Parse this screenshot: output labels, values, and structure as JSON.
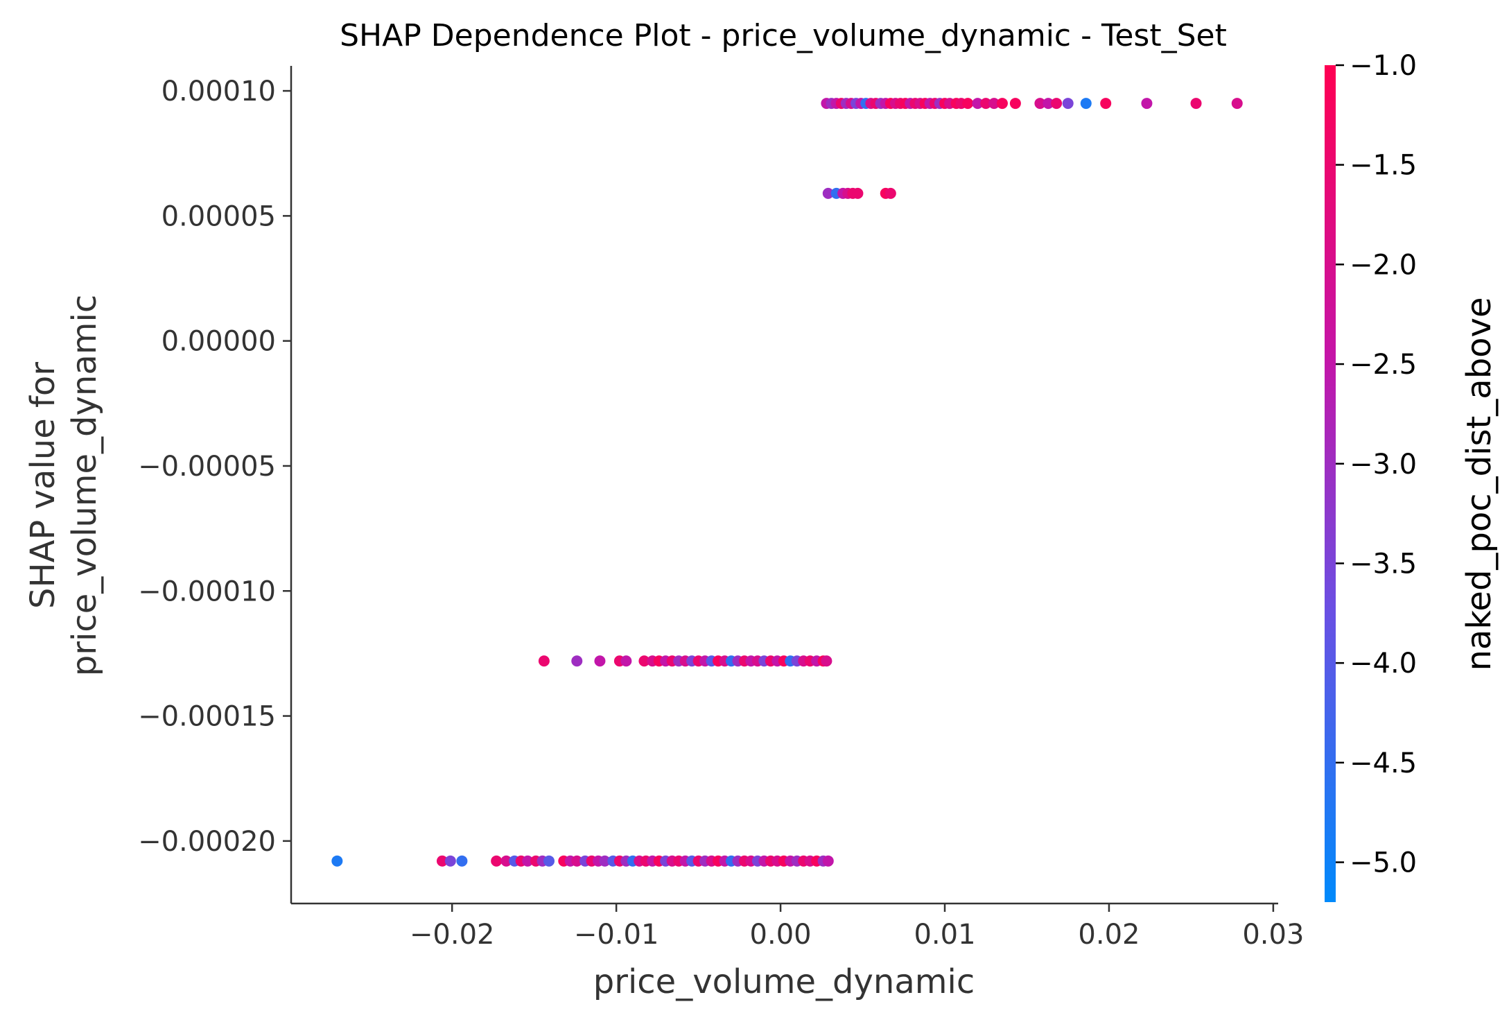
{
  "chart_data": {
    "type": "scatter",
    "title": "SHAP Dependence Plot - price_volume_dynamic - Test_Set",
    "xlabel": "price_volume_dynamic",
    "ylabel_lines": [
      "SHAP value for",
      "price_volume_dynamic"
    ],
    "xlim": [
      -0.0298,
      0.0303
    ],
    "ylim": [
      -0.000225,
      0.00011
    ],
    "x_ticks": [
      -0.02,
      -0.01,
      0.0,
      0.01,
      0.02,
      0.03
    ],
    "x_tick_labels": [
      "−0.02",
      "−0.01",
      "0.00",
      "0.01",
      "0.02",
      "0.03"
    ],
    "y_ticks": [
      0.0001,
      5e-05,
      0.0,
      -5e-05,
      -0.0001,
      -0.00015,
      -0.0002
    ],
    "y_tick_labels": [
      "0.00010",
      "0.00005",
      "0.00000",
      "−0.00005",
      "−0.00010",
      "−0.00015",
      "−0.00020"
    ],
    "colorbar": {
      "label": "naked_poc_dist_above",
      "range": [
        -5.2,
        -1.0
      ],
      "ticks": [
        -1.0,
        -1.5,
        -2.0,
        -2.5,
        -3.0,
        -3.5,
        -4.0,
        -4.5,
        -5.0
      ],
      "tick_labels": [
        "−1.0",
        "−1.5",
        "−2.0",
        "−2.5",
        "−3.0",
        "−3.5",
        "−4.0",
        "−4.5",
        "−5.0"
      ],
      "colors": [
        "#008afb",
        "#ff0052"
      ]
    },
    "series": [
      {
        "y": 9.5e-05,
        "points": [
          [
            0.0028,
            -2.5
          ],
          [
            0.0031,
            -3.0
          ],
          [
            0.0034,
            -2.5
          ],
          [
            0.0037,
            -1.5
          ],
          [
            0.004,
            -3.0
          ],
          [
            0.0043,
            -2.0
          ],
          [
            0.0046,
            -3.5
          ],
          [
            0.0049,
            -2.5
          ],
          [
            0.0052,
            -4.5
          ],
          [
            0.0055,
            -2.0
          ],
          [
            0.0058,
            -1.5
          ],
          [
            0.0061,
            -3.0
          ],
          [
            0.0064,
            -2.5
          ],
          [
            0.0067,
            -1.2
          ],
          [
            0.007,
            -2.0
          ],
          [
            0.0073,
            -1.5
          ],
          [
            0.0076,
            -1.2
          ],
          [
            0.0079,
            -2.5
          ],
          [
            0.0082,
            -1.5
          ],
          [
            0.0085,
            -2.0
          ],
          [
            0.0088,
            -1.2
          ],
          [
            0.0091,
            -2.5
          ],
          [
            0.0094,
            -1.5
          ],
          [
            0.0097,
            -3.0
          ],
          [
            0.01,
            -1.2
          ],
          [
            0.0103,
            -2.0
          ],
          [
            0.0107,
            -1.2
          ],
          [
            0.011,
            -1.5
          ],
          [
            0.0114,
            -1.2
          ],
          [
            0.012,
            -2.5
          ],
          [
            0.0125,
            -1.5
          ],
          [
            0.013,
            -2.0
          ],
          [
            0.0135,
            -1.2
          ],
          [
            0.0143,
            -1.2
          ],
          [
            0.0158,
            -2.0
          ],
          [
            0.0163,
            -2.5
          ],
          [
            0.0168,
            -1.5
          ],
          [
            0.0175,
            -3.5
          ],
          [
            0.0186,
            -4.8
          ],
          [
            0.0198,
            -1.2
          ],
          [
            0.0223,
            -2.5
          ],
          [
            0.0253,
            -1.5
          ],
          [
            0.0278,
            -2.0
          ]
        ]
      },
      {
        "y": 5.9e-05,
        "points": [
          [
            0.0029,
            -3.0
          ],
          [
            0.0034,
            -4.5
          ],
          [
            0.0038,
            -2.5
          ],
          [
            0.0041,
            -2.0
          ],
          [
            0.0044,
            -1.5
          ],
          [
            0.0047,
            -1.5
          ],
          [
            0.0064,
            -1.2
          ],
          [
            0.0067,
            -1.5
          ]
        ]
      },
      {
        "y": -0.000128,
        "points": [
          [
            -0.0144,
            -1.5
          ],
          [
            -0.0124,
            -3.0
          ],
          [
            -0.011,
            -2.5
          ],
          [
            -0.0098,
            -1.5
          ],
          [
            -0.0094,
            -2.5
          ],
          [
            -0.0083,
            -1.5
          ],
          [
            -0.0078,
            -2.0
          ],
          [
            -0.0074,
            -1.2
          ],
          [
            -0.007,
            -2.5
          ],
          [
            -0.0066,
            -1.5
          ],
          [
            -0.0062,
            -3.0
          ],
          [
            -0.0058,
            -2.0
          ],
          [
            -0.0054,
            -3.5
          ],
          [
            -0.005,
            -1.5
          ],
          [
            -0.0046,
            -2.5
          ],
          [
            -0.0042,
            -4.0
          ],
          [
            -0.0038,
            -1.2
          ],
          [
            -0.0034,
            -2.0
          ],
          [
            -0.003,
            -4.5
          ],
          [
            -0.0026,
            -3.0
          ],
          [
            -0.0022,
            -1.5
          ],
          [
            -0.0018,
            -2.5
          ],
          [
            -0.0014,
            -2.0
          ],
          [
            -0.001,
            -3.5
          ],
          [
            -0.0006,
            -1.5
          ],
          [
            -0.0002,
            -2.5
          ],
          [
            0.0002,
            -1.2
          ],
          [
            0.0006,
            -4.5
          ],
          [
            0.001,
            -3.5
          ],
          [
            0.0014,
            -2.0
          ],
          [
            0.0018,
            -1.5
          ],
          [
            0.0022,
            -2.5
          ],
          [
            0.0026,
            -1.2
          ],
          [
            0.0028,
            -2.0
          ]
        ]
      },
      {
        "y": -0.000208,
        "points": [
          [
            -0.027,
            -4.8
          ],
          [
            -0.0206,
            -1.5
          ],
          [
            -0.0201,
            -3.5
          ],
          [
            -0.0194,
            -4.5
          ],
          [
            -0.0173,
            -1.5
          ],
          [
            -0.0167,
            -2.0
          ],
          [
            -0.0162,
            -4.0
          ],
          [
            -0.0158,
            -1.5
          ],
          [
            -0.0154,
            -2.5
          ],
          [
            -0.0149,
            -1.5
          ],
          [
            -0.0145,
            -3.0
          ],
          [
            -0.0141,
            -4.0
          ],
          [
            -0.0132,
            -1.2
          ],
          [
            -0.0128,
            -2.5
          ],
          [
            -0.0124,
            -2.0
          ],
          [
            -0.0119,
            -3.5
          ],
          [
            -0.0115,
            -1.5
          ],
          [
            -0.0111,
            -2.5
          ],
          [
            -0.0107,
            -3.0
          ],
          [
            -0.0102,
            -4.0
          ],
          [
            -0.0098,
            -1.5
          ],
          [
            -0.0094,
            -3.0
          ],
          [
            -0.009,
            -4.5
          ],
          [
            -0.0086,
            -2.0
          ],
          [
            -0.0082,
            -1.5
          ],
          [
            -0.0078,
            -2.5
          ],
          [
            -0.0074,
            -1.2
          ],
          [
            -0.007,
            -3.5
          ],
          [
            -0.0066,
            -2.0
          ],
          [
            -0.0062,
            -1.5
          ],
          [
            -0.0058,
            -2.5
          ],
          [
            -0.0054,
            -4.0
          ],
          [
            -0.005,
            -1.5
          ],
          [
            -0.0046,
            -3.0
          ],
          [
            -0.0042,
            -2.0
          ],
          [
            -0.0038,
            -1.2
          ],
          [
            -0.0034,
            -2.5
          ],
          [
            -0.003,
            -4.5
          ],
          [
            -0.0026,
            -3.0
          ],
          [
            -0.0022,
            -1.5
          ],
          [
            -0.0018,
            -2.0
          ],
          [
            -0.0014,
            -3.5
          ],
          [
            -0.001,
            -2.5
          ],
          [
            -0.0006,
            -1.5
          ],
          [
            -0.0002,
            -2.0
          ],
          [
            0.0002,
            -1.2
          ],
          [
            0.0006,
            -2.5
          ],
          [
            0.001,
            -3.0
          ],
          [
            0.0014,
            -1.5
          ],
          [
            0.0018,
            -2.0
          ],
          [
            0.0022,
            -1.2
          ],
          [
            0.0026,
            -3.0
          ],
          [
            0.0029,
            -2.5
          ]
        ]
      }
    ]
  }
}
